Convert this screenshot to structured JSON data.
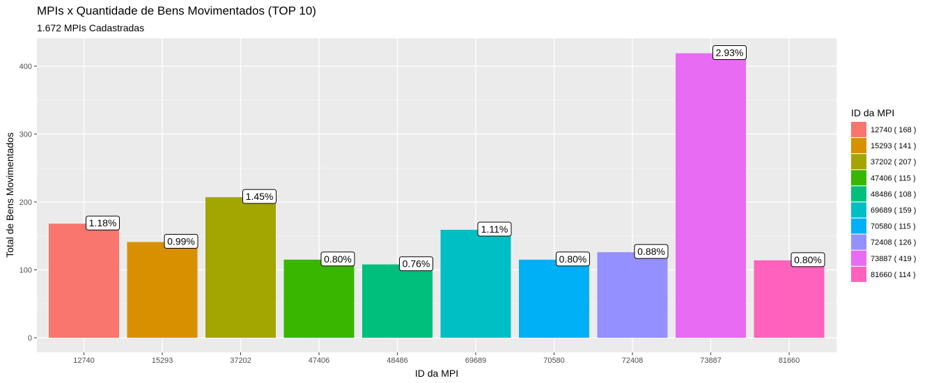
{
  "chart_data": {
    "type": "bar",
    "title": "MPIs x Quantidade de Bens Movimentados (TOP 10)",
    "subtitle": "1.672  MPIs Cadastradas",
    "xlabel": "ID da MPI",
    "ylabel": "Total de Bens Movimentados",
    "ylim": [
      0,
      440
    ],
    "yticks": [
      "0",
      "100",
      "200",
      "300",
      "400"
    ],
    "grid": true,
    "legend_position": "right",
    "legend_title": "ID da MPI",
    "categories": [
      "12740",
      "15293",
      "37202",
      "47406",
      "48486",
      "69689",
      "70580",
      "72408",
      "73887",
      "81660"
    ],
    "values": [
      168,
      141,
      207,
      115,
      108,
      159,
      115,
      126,
      419,
      114
    ],
    "data_labels": [
      "1.18%",
      "0.99%",
      "1.45%",
      "0.80%",
      "0.76%",
      "1.11%",
      "0.80%",
      "0.88%",
      "2.93%",
      "0.80%"
    ],
    "legend_entries": [
      "12740 ( 168 )",
      "15293 ( 141 )",
      "37202 ( 207 )",
      "47406 ( 115 )",
      "48486 ( 108 )",
      "69689 ( 159 )",
      "70580 ( 115 )",
      "72408 ( 126 )",
      "73887 ( 419 )",
      "81660 ( 114 )"
    ],
    "colors": [
      "#F8766D",
      "#D89000",
      "#A3A500",
      "#39B600",
      "#00BF7D",
      "#00BFC4",
      "#00B0F6",
      "#9590FF",
      "#E76BF3",
      "#FF62BC"
    ]
  }
}
